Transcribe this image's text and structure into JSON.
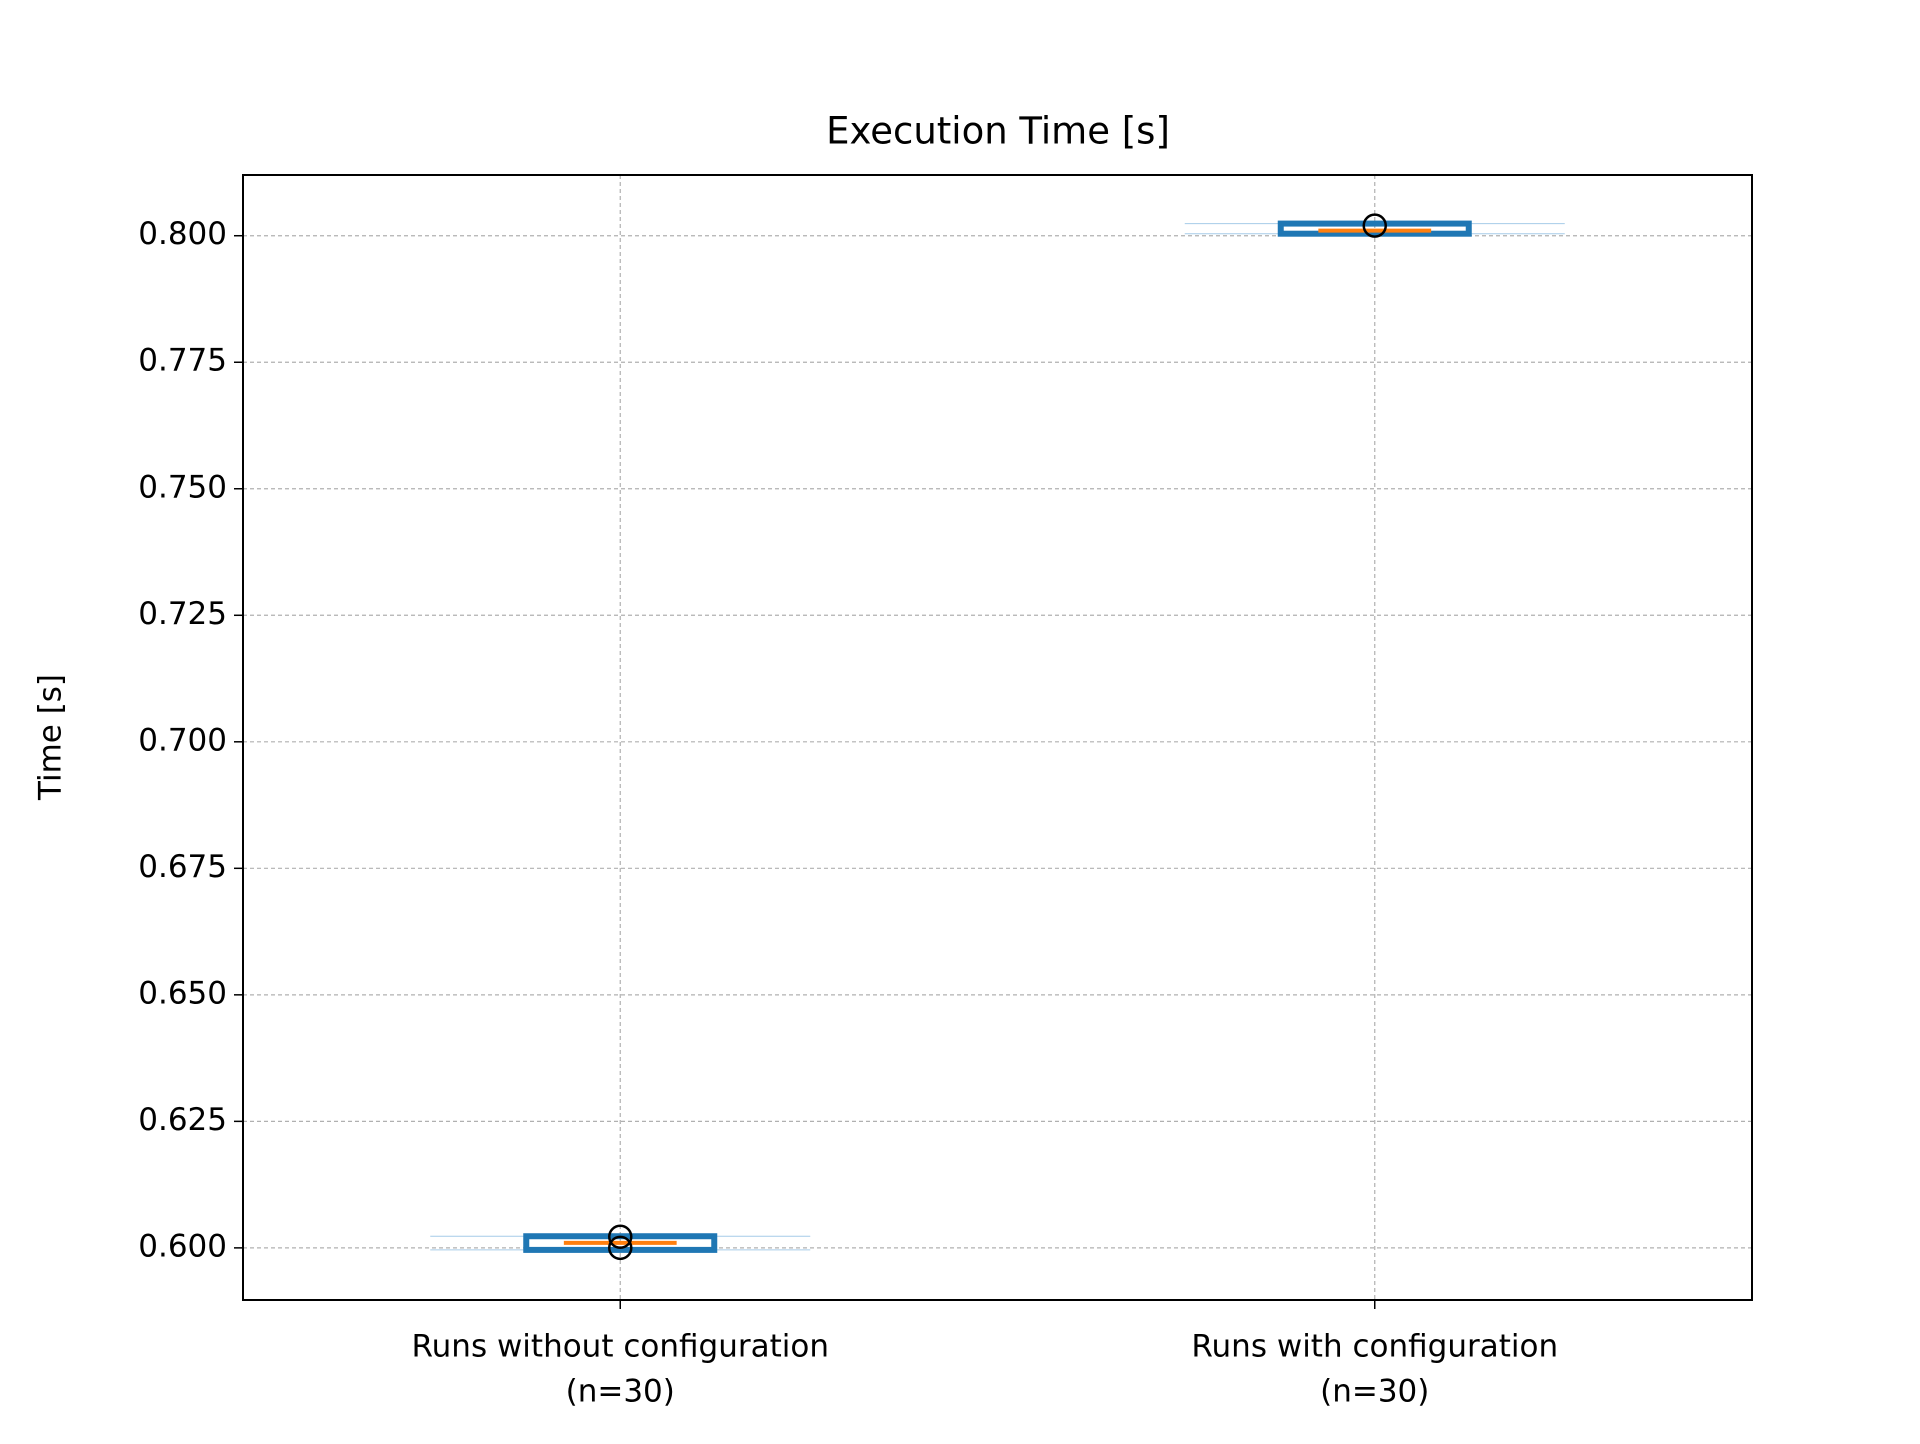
{
  "chart_data": {
    "type": "box",
    "title": "Execution Time [s]",
    "ylabel": "Time [s]",
    "categories": [
      [
        "Runs without configuration",
        "(n=30)"
      ],
      [
        "Runs with configuration",
        "(n=30)"
      ]
    ],
    "boxes": [
      {
        "whisker_low": 0.5996,
        "q1": 0.5996,
        "median": 0.601,
        "q3": 0.6023,
        "whisker_high": 0.6023,
        "fliers": [
          0.6,
          0.6022
        ]
      },
      {
        "whisker_low": 0.8004,
        "q1": 0.8004,
        "median": 0.801,
        "q3": 0.8024,
        "whisker_high": 0.8024,
        "fliers": [
          0.802
        ]
      }
    ],
    "color": "#1f77b4",
    "median_color": "#ff7f0e",
    "ylim": [
      0.5897,
      0.812
    ],
    "yticks": [
      {
        "value": 0.6,
        "label": "0.600"
      },
      {
        "value": 0.625,
        "label": "0.625"
      },
      {
        "value": 0.65,
        "label": "0.650"
      },
      {
        "value": 0.675,
        "label": "0.675"
      },
      {
        "value": 0.7,
        "label": "0.700"
      },
      {
        "value": 0.725,
        "label": "0.725"
      },
      {
        "value": 0.75,
        "label": "0.750"
      },
      {
        "value": 0.775,
        "label": "0.775"
      },
      {
        "value": 0.8,
        "label": "0.800"
      }
    ],
    "grid": true
  }
}
